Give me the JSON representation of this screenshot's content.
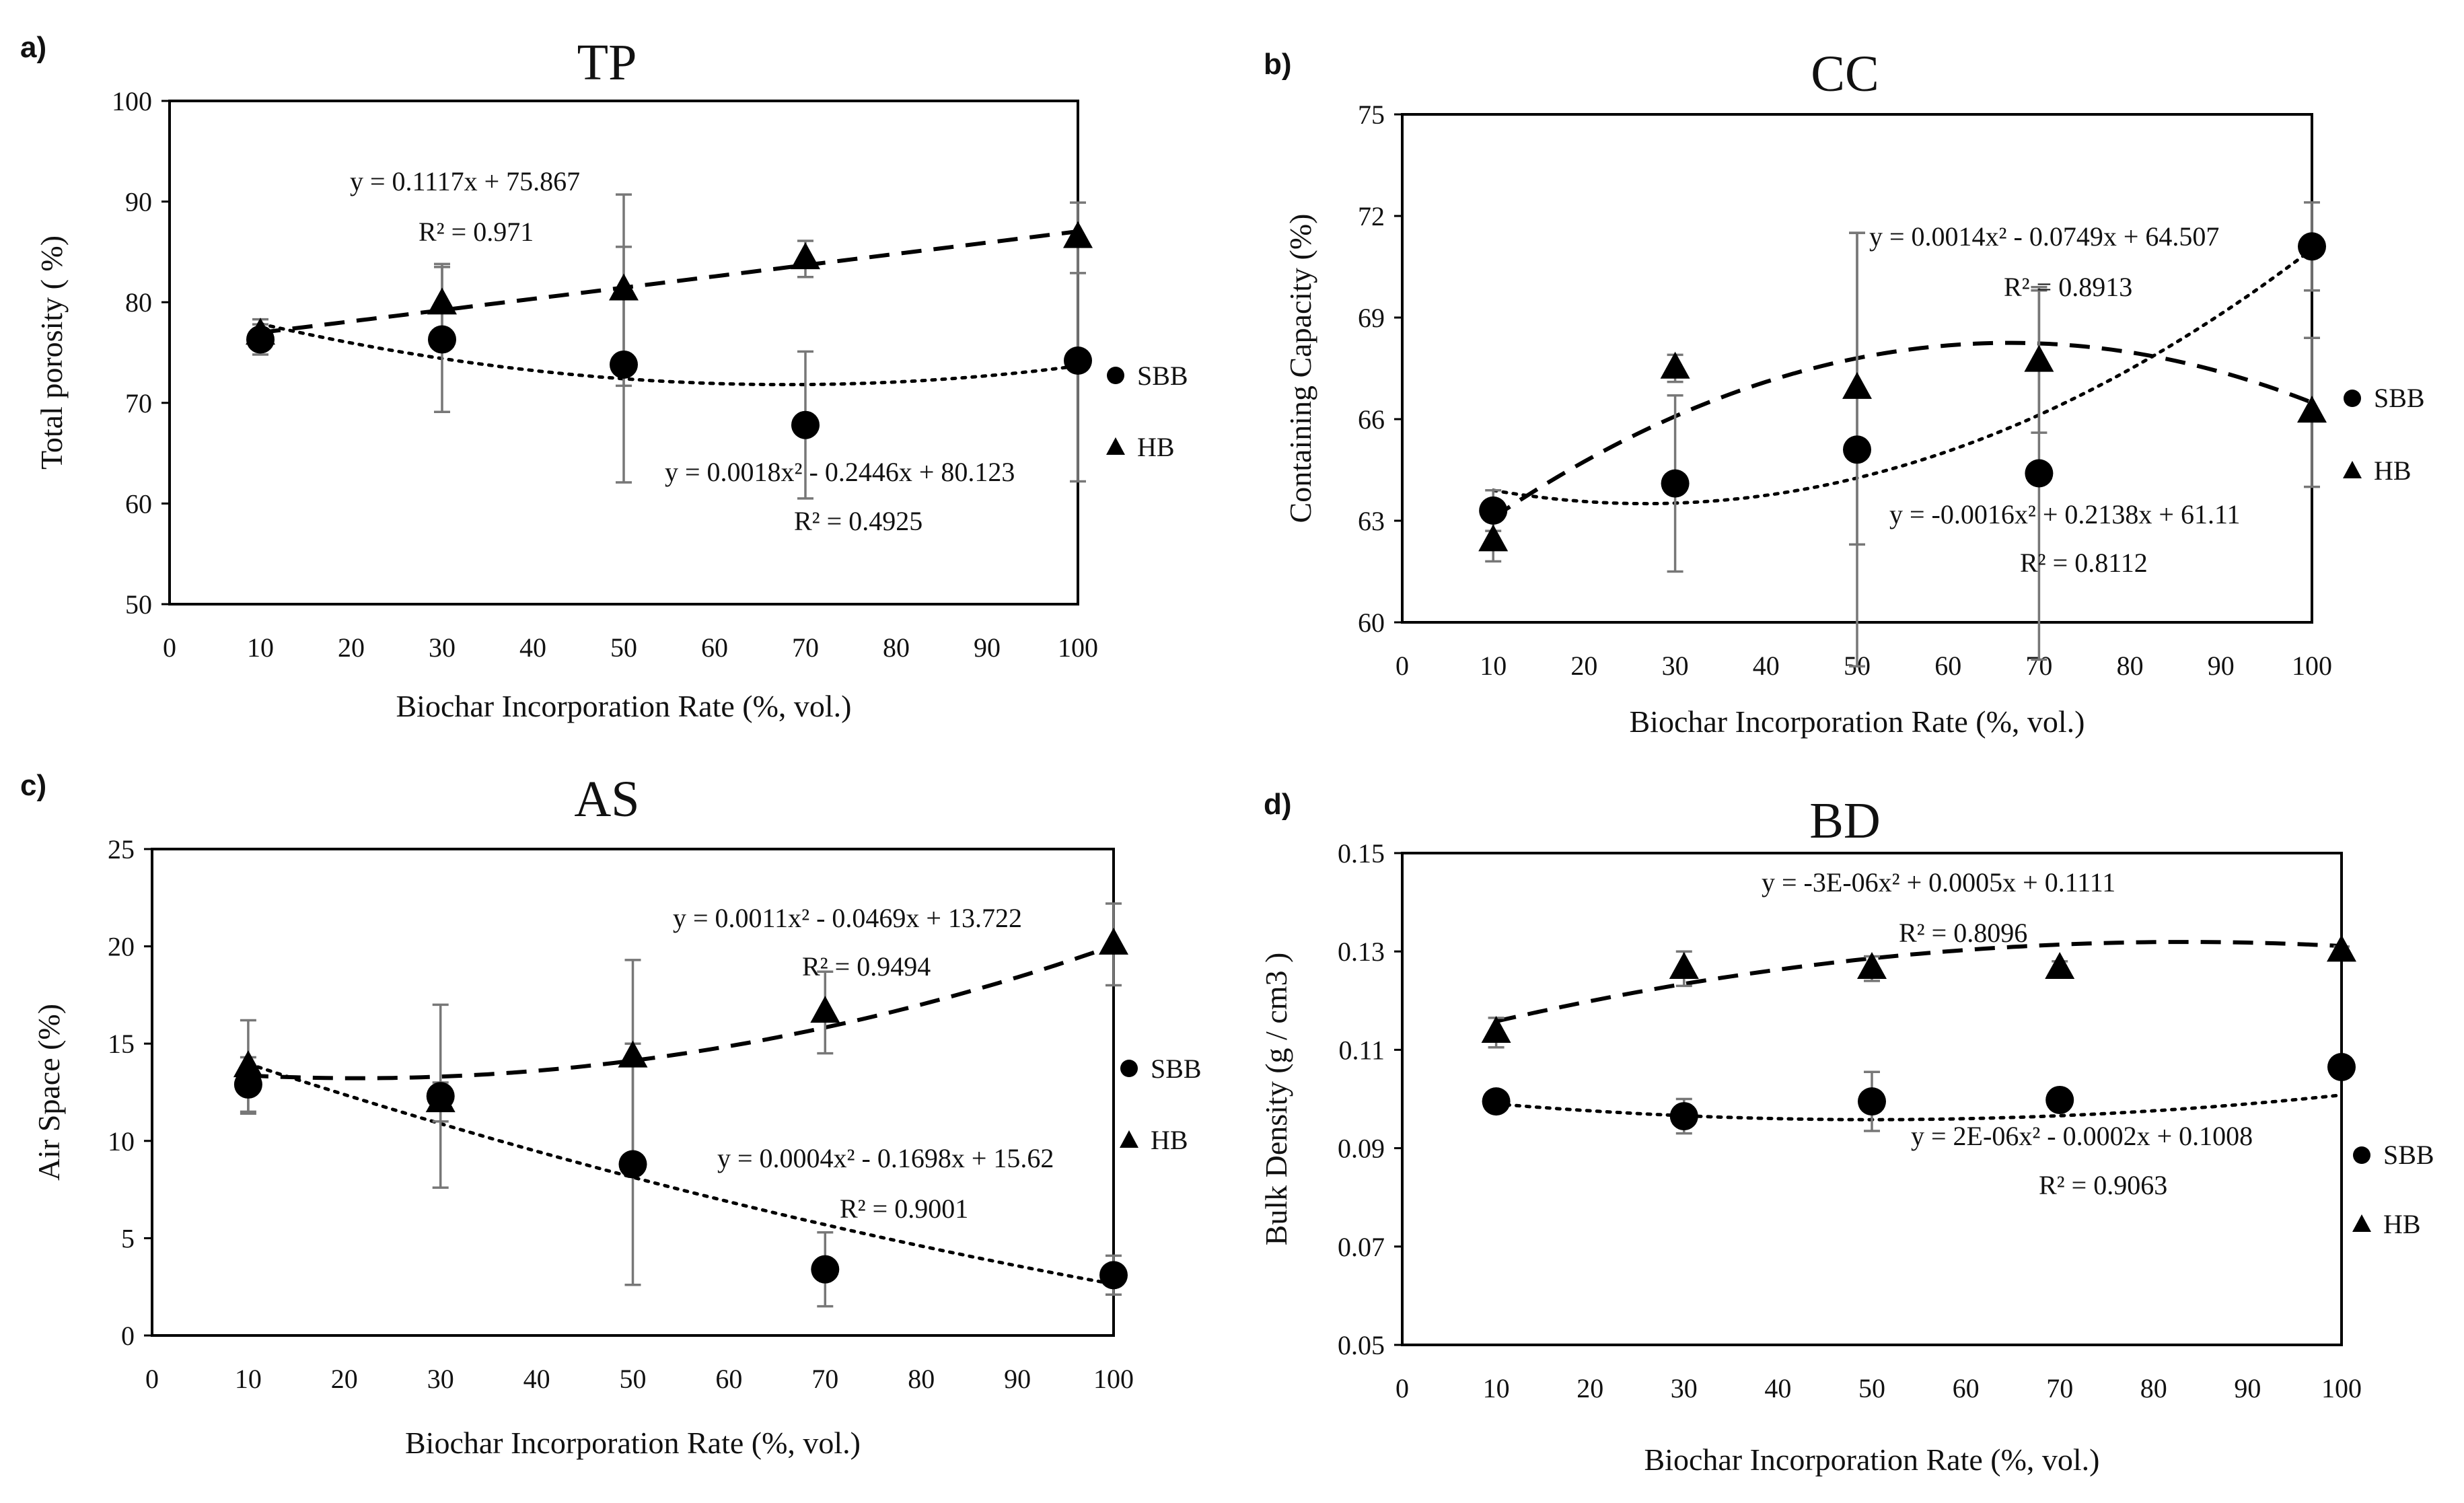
{
  "figure": {
    "panels": [
      {
        "letter": "a)",
        "title": "TP",
        "xlabel": "Biochar  Incorporation Rate (%, vol.)",
        "ylabel": "Total porosity ( %)"
      },
      {
        "letter": "b)",
        "title": "CC",
        "xlabel": "Biochar Incorporation Rate (%,  vol.)",
        "ylabel": "Containing  Capacity (%)"
      },
      {
        "letter": "c)",
        "title": "AS",
        "xlabel": "Biochar Incorporation Rate (%,  vol.)",
        "ylabel": "Air Space (%)"
      },
      {
        "letter": "d)",
        "title": "BD",
        "xlabel": "Biochar Incorporation Rate (%, vol.)",
        "ylabel": "Bulk Density (g / cm3 )"
      }
    ]
  },
  "chart_data": [
    {
      "type": "scatter",
      "title": "TP",
      "xlabel": "Biochar  Incorporation Rate (%, vol.)",
      "ylabel": "Total porosity ( %)",
      "xlim": [
        0,
        100
      ],
      "ylim": [
        50,
        100
      ],
      "xticks": [
        "0",
        "10",
        "20",
        "30",
        "40",
        "50",
        "60",
        "70",
        "80",
        "90",
        "100"
      ],
      "yticks": [
        "50",
        "60",
        "70",
        "80",
        "90",
        "100"
      ],
      "x": [
        10,
        30,
        50,
        70,
        100
      ],
      "series": [
        {
          "name": "SBB",
          "marker": "circle",
          "values": [
            76.3,
            76.3,
            73.8,
            67.8,
            74.2
          ],
          "errors": [
            1.5,
            7.2,
            11.7,
            7.3,
            12.0
          ],
          "trend": {
            "kind": "poly2",
            "a": 0.0018,
            "b": -0.2446,
            "c": 80.123,
            "style": "dotted"
          }
        },
        {
          "name": "HB",
          "marker": "triangle",
          "values": [
            76.8,
            79.8,
            81.2,
            84.3,
            86.4
          ],
          "errors": [
            1.5,
            4.0,
            9.5,
            1.8,
            3.5
          ],
          "trend": {
            "kind": "linear",
            "a": 0,
            "b": 0.1117,
            "c": 75.867,
            "style": "dashed"
          }
        }
      ],
      "annotations": [
        {
          "eq": "y = 0.1117x + 75.867",
          "r2": "R² = 0.971"
        },
        {
          "eq": "y = 0.0018x² - 0.2446x + 80.123",
          "r2": "R² = 0.4925"
        }
      ],
      "legend": [
        "SBB",
        "HB"
      ]
    },
    {
      "type": "scatter",
      "title": "CC",
      "xlabel": "Biochar Incorporation Rate (%,  vol.)",
      "ylabel": "Containing  Capacity (%)",
      "xlim": [
        0,
        100
      ],
      "ylim": [
        60,
        75
      ],
      "xticks": [
        "0",
        "10",
        "20",
        "30",
        "40",
        "50",
        "60",
        "70",
        "80",
        "90",
        "100"
      ],
      "yticks": [
        "60",
        "63",
        "66",
        "69",
        "72",
        "75"
      ],
      "x": [
        10,
        30,
        50,
        70,
        100
      ],
      "series": [
        {
          "name": "SBB",
          "marker": "circle",
          "values": [
            63.3,
            64.1,
            65.1,
            64.4,
            71.1
          ],
          "errors": [
            0.6,
            2.6,
            6.4,
            5.5,
            1.3
          ],
          "trend": {
            "kind": "poly2",
            "a": 0.0014,
            "b": -0.0749,
            "c": 64.507,
            "style": "dotted"
          }
        },
        {
          "name": "HB",
          "marker": "triangle",
          "values": [
            62.4,
            67.5,
            66.9,
            67.7,
            66.2
          ],
          "errors": [
            0.6,
            0.4,
            4.6,
            2.1,
            2.2
          ],
          "trend": {
            "kind": "poly2",
            "a": -0.0016,
            "b": 0.2138,
            "c": 61.11,
            "style": "dashed"
          }
        }
      ],
      "annotations": [
        {
          "eq": "y = 0.0014x² - 0.0749x + 64.507",
          "r2": "R² = 0.8913"
        },
        {
          "eq": "y = -0.0016x² + 0.2138x + 61.11",
          "r2": "R² = 0.8112"
        }
      ],
      "legend": [
        "SBB",
        "HB"
      ]
    },
    {
      "type": "scatter",
      "title": "AS",
      "xlabel": "Biochar Incorporation Rate (%,  vol.)",
      "ylabel": "Air Space (%)",
      "xlim": [
        0,
        100
      ],
      "ylim": [
        0,
        25
      ],
      "xticks": [
        "0",
        "10",
        "20",
        "30",
        "40",
        "50",
        "60",
        "70",
        "80",
        "90",
        "100"
      ],
      "yticks": [
        "0",
        "5",
        "10",
        "15",
        "20",
        "25"
      ],
      "x": [
        10,
        30,
        50,
        70,
        100
      ],
      "series": [
        {
          "name": "SBB",
          "marker": "circle",
          "values": [
            12.9,
            12.3,
            8.8,
            3.4,
            3.1
          ],
          "errors": [
            1.4,
            4.7,
            6.2,
            1.9,
            1.0
          ],
          "trend": {
            "kind": "poly2",
            "a": 0.0004,
            "b": -0.1698,
            "c": 15.62,
            "style": "dotted"
          }
        },
        {
          "name": "HB",
          "marker": "triangle",
          "values": [
            13.8,
            12.0,
            14.3,
            16.6,
            20.1
          ],
          "errors": [
            2.4,
            1.0,
            5.0,
            2.1,
            2.1
          ],
          "trend": {
            "kind": "poly2",
            "a": 0.0011,
            "b": -0.0469,
            "c": 13.722,
            "style": "dashed"
          }
        }
      ],
      "annotations": [
        {
          "eq": "y = 0.0011x² - 0.0469x + 13.722",
          "r2": "R² = 0.9494"
        },
        {
          "eq": "y = 0.0004x² - 0.1698x + 15.62",
          "r2": "R² = 0.9001"
        }
      ],
      "legend": [
        "SBB",
        "HB"
      ]
    },
    {
      "type": "scatter",
      "title": "BD",
      "xlabel": "Biochar Incorporation Rate (%, vol.)",
      "ylabel": "Bulk Density (g / cm3 )",
      "xlim": [
        0,
        100
      ],
      "ylim": [
        0.05,
        0.15
      ],
      "xticks": [
        "0",
        "10",
        "20",
        "30",
        "40",
        "50",
        "60",
        "70",
        "80",
        "90",
        "100"
      ],
      "yticks": [
        "0.05",
        "0.07",
        "0.09",
        "0.11",
        "0.13",
        "0.15"
      ],
      "x": [
        10,
        30,
        50,
        70,
        100
      ],
      "series": [
        {
          "name": "SBB",
          "marker": "circle",
          "values": [
            0.0995,
            0.0965,
            0.0995,
            0.0998,
            0.1065
          ],
          "errors": [
            0.001,
            0.0035,
            0.006,
            0.001,
            0.002
          ],
          "trend": {
            "kind": "poly2",
            "a": 2e-06,
            "b": -0.0002,
            "c": 0.1008,
            "style": "dotted"
          }
        },
        {
          "name": "HB",
          "marker": "triangle",
          "values": [
            0.1135,
            0.1265,
            0.1265,
            0.1265,
            0.13
          ],
          "errors": [
            0.003,
            0.0035,
            0.0025,
            0.0015,
            0.001
          ],
          "trend": {
            "kind": "poly2",
            "a": -3e-06,
            "b": 0.0005,
            "c": 0.1111,
            "style": "dashed"
          }
        }
      ],
      "annotations": [
        {
          "eq": "y = -3E-06x² + 0.0005x + 0.1111",
          "r2": "R² = 0.8096"
        },
        {
          "eq": "y = 2E-06x² - 0.0002x + 0.1008",
          "r2": "R² = 0.9063"
        }
      ],
      "legend": [
        "SBB",
        "HB"
      ]
    }
  ]
}
